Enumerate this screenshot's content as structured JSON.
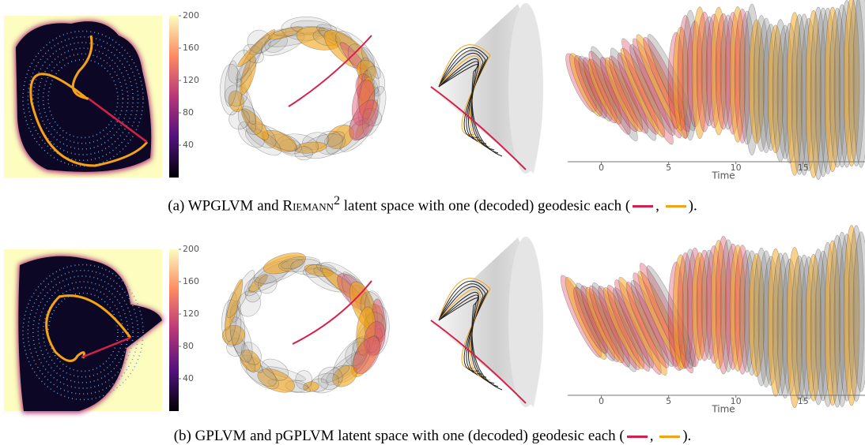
{
  "colorbar_lim": [
    0,
    200
  ],
  "time_xlim": [
    -2.5,
    19.6
  ],
  "rows": [
    {
      "colorbar_ticks": [
        200,
        160,
        120,
        80,
        40
      ],
      "time_ticks": [
        0,
        5,
        10,
        15
      ],
      "time_label": "Time",
      "caption": [
        {
          "text": "(a) WPGLVM and "
        },
        {
          "text": "Riemann",
          "style": "smallcaps"
        },
        {
          "text": "2",
          "style": "sup"
        },
        {
          "text": " latent space with one (decoded) geodesic each ("
        },
        {
          "swatch": "#d6204a"
        },
        {
          "text": ", "
        },
        {
          "swatch": "#f5a316"
        },
        {
          "text": ")."
        }
      ]
    },
    {
      "colorbar_ticks": [
        200,
        160,
        120,
        80,
        40
      ],
      "time_ticks": [
        0,
        5,
        10,
        15
      ],
      "time_label": "Time",
      "caption": [
        {
          "text": "(b) GPLVM and pGPLVM latent space with one (decoded) geodesic each ("
        },
        {
          "swatch": "#d6204a"
        },
        {
          "text": ", "
        },
        {
          "swatch": "#f5a316"
        },
        {
          "text": ")."
        }
      ]
    }
  ]
}
